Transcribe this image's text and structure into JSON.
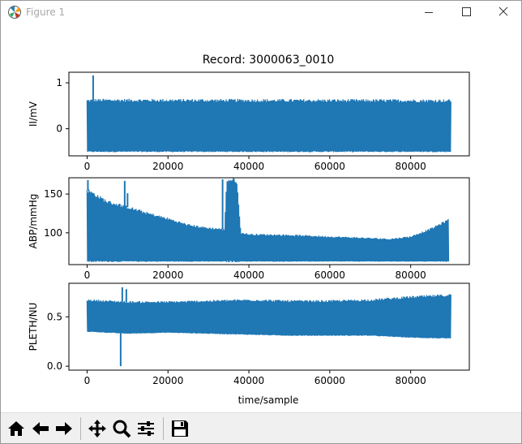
{
  "window": {
    "title": "Figure 1"
  },
  "figure": {
    "title": "Record: 3000063_0010",
    "xlabel": "time/sample"
  },
  "chart_data": [
    {
      "type": "line",
      "ylabel": "II/mV",
      "xlim": [
        -4500,
        94500
      ],
      "ylim": [
        -0.59,
        1.23
      ],
      "x_ticks": [
        0,
        20000,
        40000,
        60000,
        80000
      ],
      "x_tick_labels": [
        "0",
        "20000",
        "40000",
        "60000",
        "80000"
      ],
      "y_ticks": [
        0,
        1
      ],
      "y_tick_labels": [
        "0",
        "1"
      ],
      "series": [
        {
          "color": "#1f77b4",
          "x": [
            0,
            2000,
            89999
          ],
          "y_max": [
            0.61,
            0.62,
            0.61
          ],
          "y_min": [
            -0.5,
            -0.5,
            -0.5
          ],
          "spikes": [
            {
              "x": 1500,
              "y": 1.16
            }
          ]
        }
      ]
    },
    {
      "type": "line",
      "ylabel": "ABP/mmHg",
      "xlim": [
        -4500,
        94500
      ],
      "ylim": [
        59,
        171
      ],
      "x_ticks": [
        0,
        20000,
        40000,
        60000,
        80000
      ],
      "x_tick_labels": [
        "0",
        "20000",
        "40000",
        "60000",
        "80000"
      ],
      "y_ticks": [
        100,
        150
      ],
      "y_tick_labels": [
        "100",
        "150"
      ],
      "series": [
        {
          "color": "#1f77b4",
          "x": [
            0,
            5000,
            10000,
            15000,
            20000,
            25000,
            30000,
            33000,
            34000,
            34500,
            37000,
            38000,
            40000,
            50000,
            60000,
            70000,
            75000,
            80000,
            85000,
            89500
          ],
          "y_max": [
            155,
            140,
            133,
            125,
            118,
            110,
            106,
            105,
            104,
            168,
            168,
            100,
            98,
            97,
            95,
            93,
            92,
            95,
            105,
            117
          ],
          "y_min": [
            63,
            63,
            63,
            63,
            63,
            63,
            63,
            63,
            63,
            63,
            63,
            63,
            63,
            63,
            63,
            63,
            63,
            63,
            63,
            63
          ],
          "spikes": [
            {
              "x": 200,
              "y": 168
            },
            {
              "x": 9300,
              "y": 167
            },
            {
              "x": 10000,
              "y": 151
            },
            {
              "x": 33500,
              "y": 169
            }
          ]
        }
      ]
    },
    {
      "type": "line",
      "ylabel": "PLETH/NU",
      "xlabel": "time/sample",
      "xlim": [
        -4500,
        94500
      ],
      "ylim": [
        -0.04,
        0.84
      ],
      "x_ticks": [
        0,
        20000,
        40000,
        60000,
        80000
      ],
      "x_tick_labels": [
        "0",
        "20000",
        "40000",
        "60000",
        "80000"
      ],
      "y_ticks": [
        0.0,
        0.5
      ],
      "y_tick_labels": [
        "0.0",
        "0.5"
      ],
      "series": [
        {
          "color": "#1f77b4",
          "x": [
            0,
            10000,
            20000,
            30000,
            40000,
            50000,
            60000,
            70000,
            80000,
            89999
          ],
          "y_max": [
            0.67,
            0.65,
            0.65,
            0.66,
            0.67,
            0.66,
            0.66,
            0.67,
            0.7,
            0.72
          ],
          "y_min": [
            0.35,
            0.33,
            0.34,
            0.33,
            0.32,
            0.31,
            0.31,
            0.31,
            0.29,
            0.28
          ],
          "spikes": [
            {
              "x": 8300,
              "y": 0.0
            },
            {
              "x": 8700,
              "y": 0.8
            },
            {
              "x": 9700,
              "y": 0.78
            }
          ]
        }
      ]
    }
  ],
  "toolbar": {
    "buttons": [
      {
        "name": "home",
        "icon": "home-icon"
      },
      {
        "name": "back",
        "icon": "arrow-left-icon"
      },
      {
        "name": "forward",
        "icon": "arrow-right-icon"
      },
      {
        "name": "pan",
        "icon": "move-icon"
      },
      {
        "name": "zoom",
        "icon": "zoom-icon"
      },
      {
        "name": "configure",
        "icon": "sliders-icon"
      },
      {
        "name": "save",
        "icon": "save-icon"
      }
    ]
  },
  "colors": {
    "series": "#1f77b4",
    "axes": "#000000",
    "window_bg": "#ffffff",
    "toolbar_bg": "#f0f0f0"
  }
}
